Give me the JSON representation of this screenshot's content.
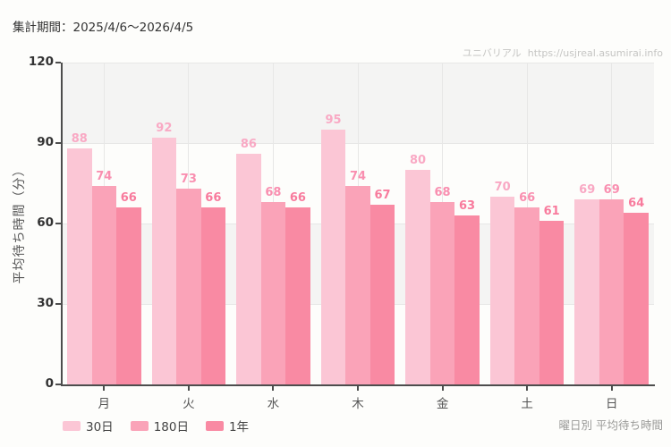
{
  "header": {
    "period_label": "集計期間：2025/4/6～2026/4/5"
  },
  "watermark": {
    "brand": "ユニバリアル",
    "url": "https://usjreal.asumirai.info"
  },
  "footer": {
    "caption": "曜日別 平均待ち時間"
  },
  "chart_data": {
    "type": "bar",
    "title": "曜日別 平均待ち時間",
    "categories": [
      "月",
      "火",
      "水",
      "木",
      "金",
      "土",
      "日"
    ],
    "series": [
      {
        "name": "30日",
        "color": "#fbc6d5",
        "label_color": "#f9a9c4",
        "values": [
          88,
          92,
          86,
          95,
          80,
          70,
          69
        ]
      },
      {
        "name": "180日",
        "color": "#faa3b8",
        "label_color": "#f98fb0",
        "values": [
          74,
          73,
          68,
          74,
          68,
          66,
          69
        ]
      },
      {
        "name": "1年",
        "color": "#f98aa3",
        "label_color": "#f87b9d",
        "values": [
          66,
          66,
          66,
          67,
          63,
          61,
          64
        ]
      }
    ],
    "xlabel": "",
    "ylabel": "平均待ち時間（分）",
    "ylim": [
      0,
      120
    ],
    "yticks": [
      0,
      30,
      60,
      90,
      120
    ],
    "legend_position": "bottom-left",
    "grid": true,
    "band_colors": [
      "#f4f4f3",
      "#fdfdfb"
    ]
  },
  "theme": {
    "axis": "#4d4d4d",
    "gridline": "#e7e7e6",
    "tick_label": "#333333",
    "category_label": "#555555",
    "watermark_color": "#c5c5c3",
    "caption_color": "#9a9a98"
  }
}
